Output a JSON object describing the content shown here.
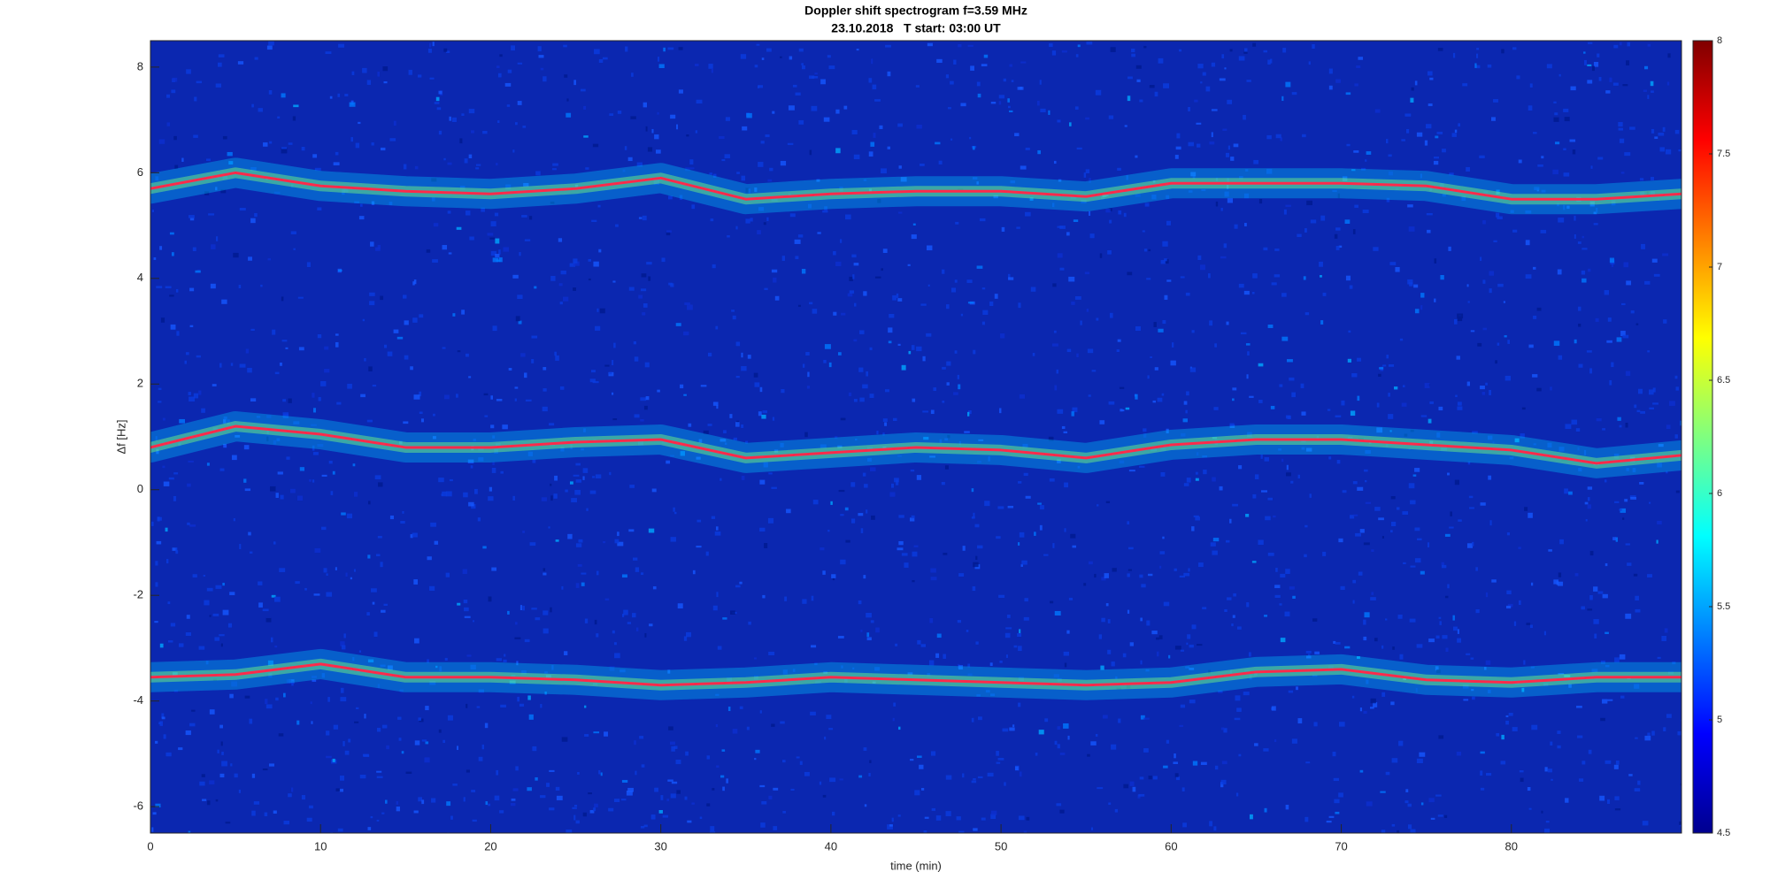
{
  "chart_data": {
    "type": "spectrogram",
    "title": "Doppler shift spectrogram f=3.59 MHz",
    "subtitle": "23.10.2018   T start: 03:00 UT",
    "x_label": "time (min)",
    "y_label": "Δf [Hz]",
    "xlim": [
      0,
      90
    ],
    "ylim": [
      -6.5,
      8.5
    ],
    "xticks": [
      0,
      10,
      20,
      30,
      40,
      50,
      60,
      70,
      80
    ],
    "yticks": [
      -6,
      -4,
      -2,
      0,
      2,
      4,
      6,
      8
    ],
    "clim": [
      4.5,
      8
    ],
    "cticks": [
      4.5,
      5,
      5.5,
      6,
      6.5,
      7,
      7.5,
      8
    ],
    "x": [
      0,
      5,
      10,
      15,
      20,
      25,
      30,
      35,
      40,
      45,
      50,
      55,
      60,
      65,
      70,
      75,
      80,
      85,
      90
    ],
    "series": [
      {
        "color": "#ff2a4a",
        "values": [
          5.7,
          6.0,
          5.75,
          5.65,
          5.6,
          5.7,
          5.9,
          5.5,
          5.6,
          5.65,
          5.65,
          5.55,
          5.8,
          5.8,
          5.8,
          5.75,
          5.5,
          5.5,
          5.6
        ]
      },
      {
        "color": "#ff2a4a",
        "values": [
          0.8,
          1.2,
          1.05,
          0.8,
          0.8,
          0.9,
          0.95,
          0.6,
          0.7,
          0.8,
          0.75,
          0.6,
          0.85,
          0.95,
          0.95,
          0.85,
          0.75,
          0.5,
          0.65
        ]
      },
      {
        "color": "#ff2a4a",
        "values": [
          -3.55,
          -3.5,
          -3.3,
          -3.55,
          -3.55,
          -3.6,
          -3.7,
          -3.65,
          -3.55,
          -3.6,
          -3.65,
          -3.7,
          -3.65,
          -3.45,
          -3.4,
          -3.6,
          -3.65,
          -3.55,
          -3.55
        ]
      }
    ]
  }
}
